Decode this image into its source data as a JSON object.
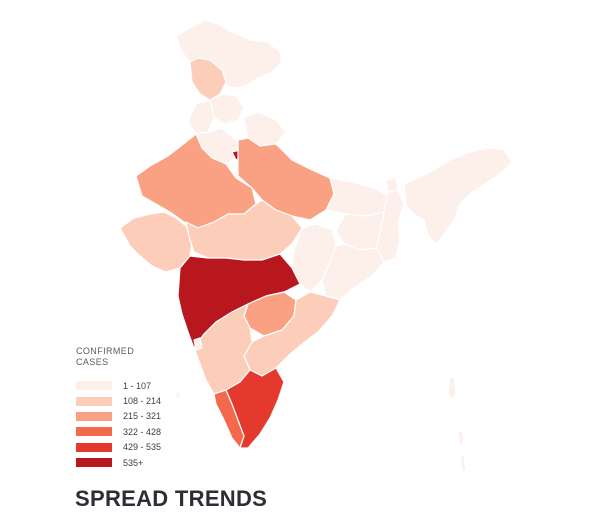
{
  "legend": {
    "title_line1": "CONFIRMED",
    "title_line2": "CASES",
    "items": [
      {
        "label": "1 - 107",
        "color": "#fdefea"
      },
      {
        "label": "108 - 214",
        "color": "#fccdb8"
      },
      {
        "label": "215 - 321",
        "color": "#faa083"
      },
      {
        "label": "322 - 428",
        "color": "#f4694c"
      },
      {
        "label": "429 - 535",
        "color": "#e43a2e"
      },
      {
        "label": "535+",
        "color": "#b8171d"
      }
    ]
  },
  "section_title": "SPREAD TRENDS",
  "map": {
    "region": "India",
    "outline_color": "#f8d3d0"
  }
}
